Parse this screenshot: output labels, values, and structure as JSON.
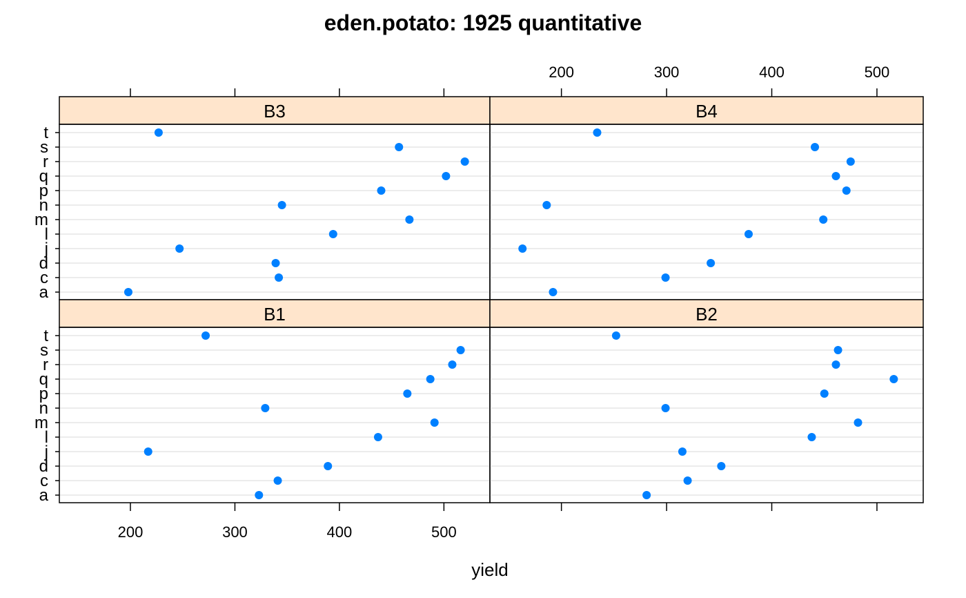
{
  "chart_data": {
    "type": "scatter",
    "title": "eden.potato: 1925 quantitative",
    "xlabel": "yield",
    "ylabel": "",
    "xlim": [
      132,
      544
    ],
    "x_ticks": [
      200,
      300,
      400,
      500
    ],
    "categories": [
      "a",
      "c",
      "d",
      "j",
      "l",
      "m",
      "n",
      "p",
      "q",
      "r",
      "s",
      "t"
    ],
    "grid": true,
    "colors": {
      "point": "#0080ff",
      "strip": "#ffe5cc",
      "grid": "#e6e6e6",
      "frame": "#000000"
    },
    "panels": [
      {
        "name": "B3",
        "values": [
          198,
          342,
          339,
          247,
          394,
          467,
          345,
          440,
          502,
          520,
          457,
          227
        ]
      },
      {
        "name": "B4",
        "values": [
          192,
          299,
          342,
          163,
          378,
          449,
          186,
          471,
          461,
          475,
          441,
          234
        ]
      },
      {
        "name": "B1",
        "values": [
          323,
          341,
          389,
          217,
          437,
          491,
          329,
          465,
          487,
          508,
          516,
          272
        ]
      },
      {
        "name": "B2",
        "values": [
          281,
          320,
          352,
          315,
          438,
          482,
          299,
          450,
          516,
          461,
          463,
          252
        ]
      }
    ]
  }
}
